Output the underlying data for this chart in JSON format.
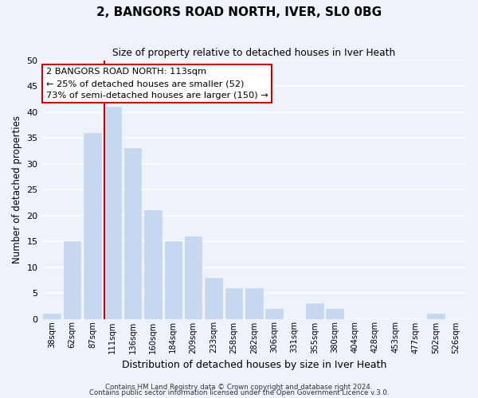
{
  "title": "2, BANGORS ROAD NORTH, IVER, SL0 0BG",
  "subtitle": "Size of property relative to detached houses in Iver Heath",
  "xlabel": "Distribution of detached houses by size in Iver Heath",
  "ylabel": "Number of detached properties",
  "bar_labels": [
    "38sqm",
    "62sqm",
    "87sqm",
    "111sqm",
    "136sqm",
    "160sqm",
    "184sqm",
    "209sqm",
    "233sqm",
    "258sqm",
    "282sqm",
    "306sqm",
    "331sqm",
    "355sqm",
    "380sqm",
    "404sqm",
    "428sqm",
    "453sqm",
    "477sqm",
    "502sqm",
    "526sqm"
  ],
  "bar_values": [
    1,
    15,
    36,
    41,
    33,
    21,
    15,
    16,
    8,
    6,
    6,
    2,
    0,
    3,
    2,
    0,
    0,
    0,
    0,
    1,
    0
  ],
  "bar_color": "#c5d8f0",
  "marker_index": 3,
  "marker_color": "#cc0000",
  "ylim": [
    0,
    50
  ],
  "yticks": [
    0,
    5,
    10,
    15,
    20,
    25,
    30,
    35,
    40,
    45,
    50
  ],
  "annotation_title": "2 BANGORS ROAD NORTH: 113sqm",
  "annotation_line1": "← 25% of detached houses are smaller (52)",
  "annotation_line2": "73% of semi-detached houses are larger (150) →",
  "footer1": "Contains HM Land Registry data © Crown copyright and database right 2024.",
  "footer2": "Contains public sector information licensed under the Open Government Licence v.3.0.",
  "background_color": "#eef2fa",
  "plot_background": "#eef2fa"
}
